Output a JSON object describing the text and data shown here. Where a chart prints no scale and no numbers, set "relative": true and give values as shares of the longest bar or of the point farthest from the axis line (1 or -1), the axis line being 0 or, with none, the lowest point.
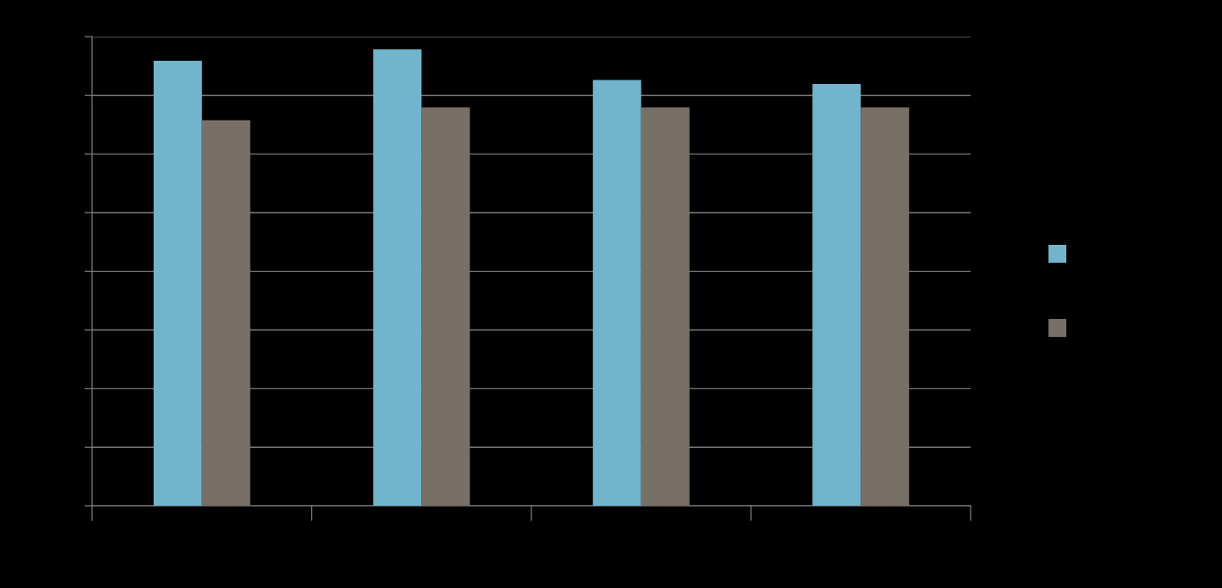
{
  "chart_data": {
    "type": "bar",
    "relative": true,
    "categories": [
      null,
      null,
      null,
      null
    ],
    "series": [
      {
        "color": "#71b4cc",
        "values": [
          0.975,
          1,
          0.933,
          0.924
        ]
      },
      {
        "color": "#787067",
        "values": [
          0.845,
          0.873,
          0.873,
          0.873
        ]
      }
    ],
    "grid": "y"
  }
}
